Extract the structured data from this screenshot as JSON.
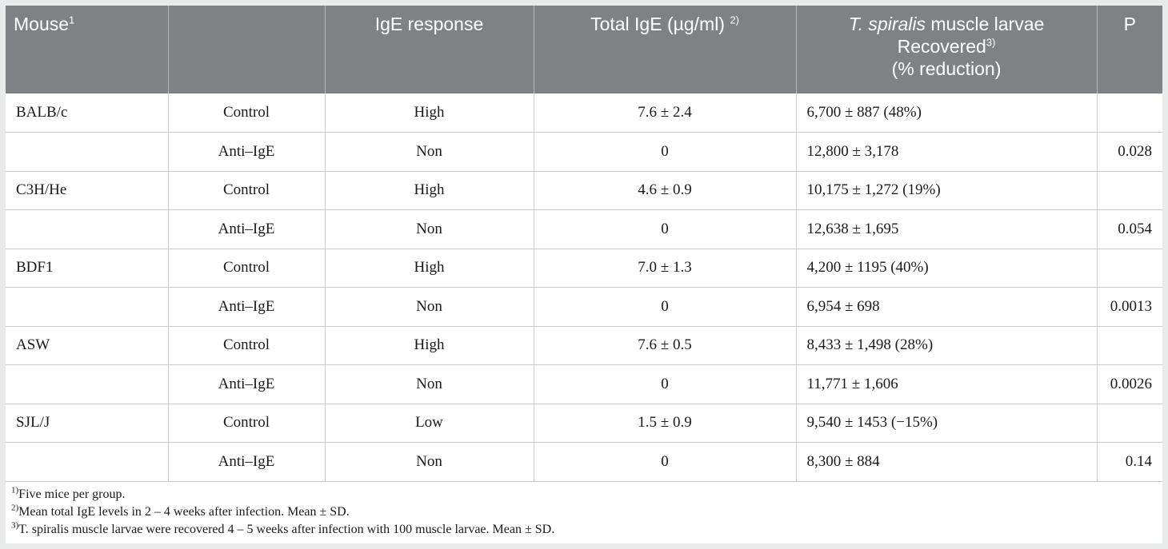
{
  "header": {
    "mouse": "Mouse",
    "mouse_sup": "1",
    "treatment": "",
    "ige_response": "IgE response",
    "total_ige": "Total IgE (µg/ml)",
    "total_ige_sup": "2)",
    "larvae_species": "T. spiralis",
    "larvae_rest": " muscle larvae",
    "larvae_line2": "Recovered",
    "larvae_sup": "3)",
    "larvae_line3": "(% reduction)",
    "p": "P"
  },
  "rows": [
    {
      "mouse": "BALB/c",
      "treatment": "Control",
      "response": "High",
      "total": "7.6 ± 2.4",
      "larvae": "6,700 ± 887 (48%)",
      "p": ""
    },
    {
      "mouse": "",
      "treatment": "Anti–IgE",
      "response": "Non",
      "total": "0",
      "larvae": "12,800 ± 3,178",
      "p": "0.028"
    },
    {
      "mouse": "C3H/He",
      "treatment": "Control",
      "response": "High",
      "total": "4.6 ± 0.9",
      "larvae": "10,175 ± 1,272 (19%)",
      "p": ""
    },
    {
      "mouse": "",
      "treatment": "Anti–IgE",
      "response": "Non",
      "total": "0",
      "larvae": "12,638 ± 1,695",
      "p": "0.054"
    },
    {
      "mouse": "BDF1",
      "treatment": "Control",
      "response": "High",
      "total": "7.0 ± 1.3",
      "larvae": "4,200 ± 1195 (40%)",
      "p": ""
    },
    {
      "mouse": "",
      "treatment": "Anti–IgE",
      "response": "Non",
      "total": "0",
      "larvae": "6,954 ± 698",
      "p": "0.0013"
    },
    {
      "mouse": "ASW",
      "treatment": "Control",
      "response": "High",
      "total": "7.6 ± 0.5",
      "larvae": "8,433 ± 1,498 (28%)",
      "p": ""
    },
    {
      "mouse": "",
      "treatment": "Anti–IgE",
      "response": "Non",
      "total": "0",
      "larvae": "11,771 ± 1,606",
      "p": "0.0026"
    },
    {
      "mouse": "SJL/J",
      "treatment": "Control",
      "response": "Low",
      "total": "1.5 ± 0.9",
      "larvae": "9,540 ± 1453 (−15%)",
      "p": ""
    },
    {
      "mouse": "",
      "treatment": "Anti–IgE",
      "response": "Non",
      "total": "0",
      "larvae": "8,300 ± 884",
      "p": "0.14"
    }
  ],
  "footnotes": [
    {
      "mark": "1)",
      "text": "Five mice per group."
    },
    {
      "mark": "2)",
      "text": "Mean total IgE levels in 2 – 4 weeks after infection. Mean ± SD."
    },
    {
      "mark": "3)",
      "text": "T. spiralis muscle larvae were recovered 4 – 5 weeks after infection with 100 muscle larvae. Mean ± SD."
    }
  ],
  "colors": {
    "header_bg": "#7f8285",
    "page_bg": "#e9eaea"
  }
}
